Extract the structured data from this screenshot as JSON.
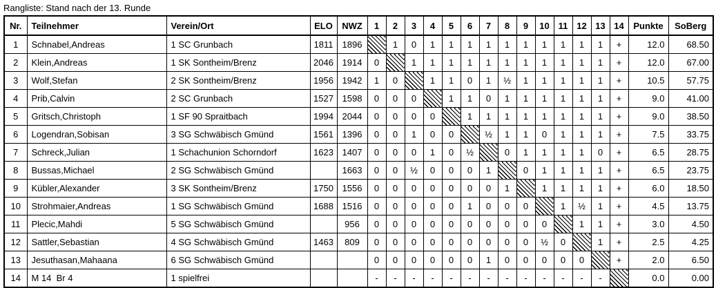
{
  "title": "Rangliste: Stand nach der 13. Runde",
  "colors": {
    "text": "#000000",
    "border": "#000000",
    "background": "#ffffff"
  },
  "table": {
    "columns": [
      "Nr.",
      "Teilnehmer",
      "Verein/Ort",
      "ELO",
      "NWZ",
      "1",
      "2",
      "3",
      "4",
      "5",
      "6",
      "7",
      "8",
      "9",
      "10",
      "11",
      "12",
      "13",
      "14",
      "Punkte",
      "SoBerg"
    ],
    "diagonal_marker": "#",
    "rows": [
      {
        "nr": "1",
        "teilnehmer": "Schnabel,Andreas",
        "verein": "1 SC Grunbach",
        "elo": "1811",
        "nwz": "1896",
        "results": [
          "#",
          "1",
          "0",
          "1",
          "1",
          "1",
          "1",
          "1",
          "1",
          "1",
          "1",
          "1",
          "1",
          "+"
        ],
        "punkte": "12.0",
        "soberg": "68.50"
      },
      {
        "nr": "2",
        "teilnehmer": "Klein,Andreas",
        "verein": "1 SK Sontheim/Brenz",
        "elo": "2046",
        "nwz": "1914",
        "results": [
          "0",
          "#",
          "1",
          "1",
          "1",
          "1",
          "1",
          "1",
          "1",
          "1",
          "1",
          "1",
          "1",
          "+"
        ],
        "punkte": "12.0",
        "soberg": "67.00"
      },
      {
        "nr": "3",
        "teilnehmer": "Wolf,Stefan",
        "verein": "2 SK Sontheim/Brenz",
        "elo": "1956",
        "nwz": "1942",
        "results": [
          "1",
          "0",
          "#",
          "1",
          "1",
          "0",
          "1",
          "½",
          "1",
          "1",
          "1",
          "1",
          "1",
          "+"
        ],
        "punkte": "10.5",
        "soberg": "57.75"
      },
      {
        "nr": "4",
        "teilnehmer": "Prib,Calvin",
        "verein": "2 SC Grunbach",
        "elo": "1527",
        "nwz": "1598",
        "results": [
          "0",
          "0",
          "0",
          "#",
          "1",
          "1",
          "0",
          "1",
          "1",
          "1",
          "1",
          "1",
          "1",
          "+"
        ],
        "punkte": "9.0",
        "soberg": "41.00"
      },
      {
        "nr": "5",
        "teilnehmer": "Gritsch,Christoph",
        "verein": "1 SF 90 Spraitbach",
        "elo": "1994",
        "nwz": "2044",
        "results": [
          "0",
          "0",
          "0",
          "0",
          "#",
          "1",
          "1",
          "1",
          "1",
          "1",
          "1",
          "1",
          "1",
          "+"
        ],
        "punkte": "9.0",
        "soberg": "38.50"
      },
      {
        "nr": "6",
        "teilnehmer": "Logendran,Sobisan",
        "verein": "3 SG Schwäbisch Gmünd",
        "elo": "1561",
        "nwz": "1396",
        "results": [
          "0",
          "0",
          "1",
          "0",
          "0",
          "#",
          "½",
          "1",
          "1",
          "0",
          "1",
          "1",
          "1",
          "+"
        ],
        "punkte": "7.5",
        "soberg": "33.75"
      },
      {
        "nr": "7",
        "teilnehmer": "Schreck,Julian",
        "verein": "1 Schachunion Schorndorf",
        "elo": "1623",
        "nwz": "1407",
        "results": [
          "0",
          "0",
          "0",
          "1",
          "0",
          "½",
          "#",
          "0",
          "1",
          "1",
          "1",
          "1",
          "0",
          "+"
        ],
        "punkte": "6.5",
        "soberg": "28.75"
      },
      {
        "nr": "8",
        "teilnehmer": "Bussas,Michael",
        "verein": "2 SG Schwäbisch Gmünd",
        "elo": "",
        "nwz": "1663",
        "results": [
          "0",
          "0",
          "½",
          "0",
          "0",
          "0",
          "1",
          "#",
          "0",
          "1",
          "1",
          "1",
          "1",
          "+"
        ],
        "punkte": "6.5",
        "soberg": "23.75"
      },
      {
        "nr": "9",
        "teilnehmer": "Kübler,Alexander",
        "verein": "3 SK Sontheim/Brenz",
        "elo": "1750",
        "nwz": "1556",
        "results": [
          "0",
          "0",
          "0",
          "0",
          "0",
          "0",
          "0",
          "1",
          "#",
          "1",
          "1",
          "1",
          "1",
          "+"
        ],
        "punkte": "6.0",
        "soberg": "18.50"
      },
      {
        "nr": "10",
        "teilnehmer": "Strohmaier,Andreas",
        "verein": "1 SG Schwäbisch Gmünd",
        "elo": "1688",
        "nwz": "1516",
        "results": [
          "0",
          "0",
          "0",
          "0",
          "0",
          "1",
          "0",
          "0",
          "0",
          "#",
          "1",
          "½",
          "1",
          "+"
        ],
        "punkte": "4.5",
        "soberg": "13.75"
      },
      {
        "nr": "11",
        "teilnehmer": "Plecic,Mahdi",
        "verein": "5 SG Schwäbisch Gmünd",
        "elo": "",
        "nwz": "956",
        "results": [
          "0",
          "0",
          "0",
          "0",
          "0",
          "0",
          "0",
          "0",
          "0",
          "0",
          "#",
          "1",
          "1",
          "+"
        ],
        "punkte": "3.0",
        "soberg": "4.50"
      },
      {
        "nr": "12",
        "teilnehmer": "Sattler,Sebastian",
        "verein": "4 SG Schwäbisch Gmünd",
        "elo": "1463",
        "nwz": "809",
        "results": [
          "0",
          "0",
          "0",
          "0",
          "0",
          "0",
          "0",
          "0",
          "0",
          "½",
          "0",
          "#",
          "1",
          "+"
        ],
        "punkte": "2.5",
        "soberg": "4.25"
      },
      {
        "nr": "13",
        "teilnehmer": "Jesuthasan,Mahaana",
        "verein": "6 SG Schwäbisch Gmünd",
        "elo": "",
        "nwz": "",
        "results": [
          "0",
          "0",
          "0",
          "0",
          "0",
          "0",
          "1",
          "0",
          "0",
          "0",
          "0",
          "0",
          "#",
          "+"
        ],
        "punkte": "2.0",
        "soberg": "6.50"
      },
      {
        "nr": "14",
        "teilnehmer": "M 14  Br 4",
        "verein": "1 spielfrei",
        "elo": "",
        "nwz": "",
        "results": [
          "-",
          "-",
          "-",
          "-",
          "-",
          "-",
          "-",
          "-",
          "-",
          "-",
          "-",
          "-",
          "-",
          "#"
        ],
        "punkte": "0.0",
        "soberg": "0.00"
      }
    ]
  }
}
